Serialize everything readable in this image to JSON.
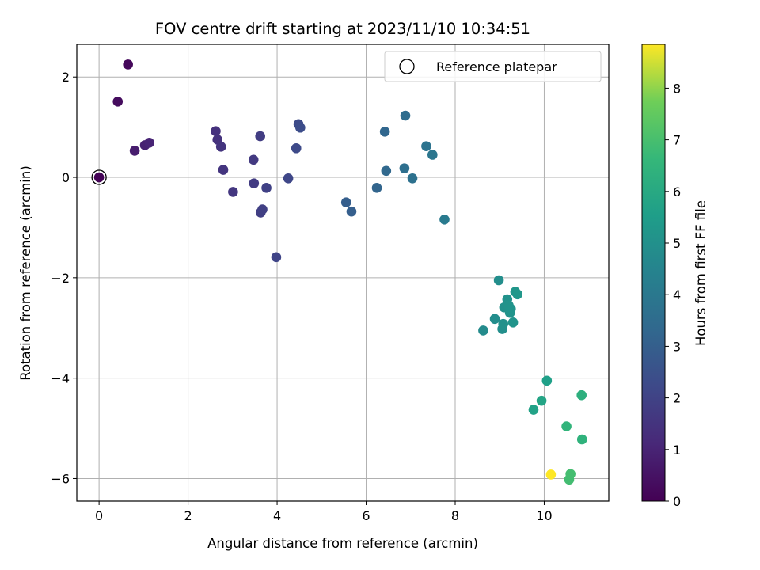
{
  "chart_data": {
    "type": "scatter",
    "title": "FOV centre drift starting at 2023/11/10 10:34:51",
    "xlabel": "Angular distance from reference (arcmin)",
    "ylabel": "Rotation from reference (arcmin)",
    "xlim": [
      -0.5,
      11.45
    ],
    "ylim": [
      -6.45,
      2.65
    ],
    "xticks": [
      0,
      2,
      4,
      6,
      8,
      10
    ],
    "yticks": [
      -6,
      -4,
      -2,
      0,
      2
    ],
    "grid": true,
    "legend": {
      "position": "top-right",
      "entries": [
        "Reference platepar"
      ]
    },
    "reference_point": {
      "x": 0,
      "y": 0
    },
    "colorbar": {
      "label": "Hours from first FF file",
      "range": [
        0,
        8.85
      ],
      "ticks": [
        0,
        1,
        2,
        3,
        4,
        5,
        6,
        7,
        8
      ],
      "colormap": "viridis"
    },
    "points": [
      {
        "x": 0.0,
        "y": 0.0,
        "hours": 0.05
      },
      {
        "x": 0.65,
        "y": 2.25,
        "hours": 0.2
      },
      {
        "x": 0.42,
        "y": 1.51,
        "hours": 0.3
      },
      {
        "x": 0.8,
        "y": 0.53,
        "hours": 0.8
      },
      {
        "x": 1.03,
        "y": 0.64,
        "hours": 0.9
      },
      {
        "x": 1.13,
        "y": 0.69,
        "hours": 1.0
      },
      {
        "x": 2.62,
        "y": 0.92,
        "hours": 1.4
      },
      {
        "x": 2.66,
        "y": 0.75,
        "hours": 1.45
      },
      {
        "x": 2.74,
        "y": 0.61,
        "hours": 1.5
      },
      {
        "x": 2.79,
        "y": 0.15,
        "hours": 1.55
      },
      {
        "x": 3.01,
        "y": -0.29,
        "hours": 1.6
      },
      {
        "x": 3.47,
        "y": 0.35,
        "hours": 1.7
      },
      {
        "x": 3.48,
        "y": -0.12,
        "hours": 1.75
      },
      {
        "x": 3.62,
        "y": 0.82,
        "hours": 1.8
      },
      {
        "x": 3.63,
        "y": -0.7,
        "hours": 1.85
      },
      {
        "x": 3.67,
        "y": -0.64,
        "hours": 1.9
      },
      {
        "x": 3.76,
        "y": -0.21,
        "hours": 1.95
      },
      {
        "x": 3.98,
        "y": -1.59,
        "hours": 2.05
      },
      {
        "x": 4.25,
        "y": -0.02,
        "hours": 2.15
      },
      {
        "x": 4.43,
        "y": 0.58,
        "hours": 2.25
      },
      {
        "x": 4.48,
        "y": 1.06,
        "hours": 2.3
      },
      {
        "x": 4.52,
        "y": 0.99,
        "hours": 2.35
      },
      {
        "x": 5.55,
        "y": -0.5,
        "hours": 2.95
      },
      {
        "x": 5.67,
        "y": -0.68,
        "hours": 3.0
      },
      {
        "x": 6.24,
        "y": -0.21,
        "hours": 3.2
      },
      {
        "x": 6.42,
        "y": 0.91,
        "hours": 3.3
      },
      {
        "x": 6.45,
        "y": 0.13,
        "hours": 3.35
      },
      {
        "x": 6.86,
        "y": 0.18,
        "hours": 3.6
      },
      {
        "x": 6.88,
        "y": 1.23,
        "hours": 3.55
      },
      {
        "x": 7.04,
        "y": -0.02,
        "hours": 3.7
      },
      {
        "x": 7.35,
        "y": 0.62,
        "hours": 3.8
      },
      {
        "x": 7.49,
        "y": 0.45,
        "hours": 3.9
      },
      {
        "x": 7.76,
        "y": -0.84,
        "hours": 4.1
      },
      {
        "x": 8.63,
        "y": -3.05,
        "hours": 4.8
      },
      {
        "x": 8.89,
        "y": -2.82,
        "hours": 4.85
      },
      {
        "x": 8.98,
        "y": -2.05,
        "hours": 4.9
      },
      {
        "x": 9.06,
        "y": -3.02,
        "hours": 4.95
      },
      {
        "x": 9.08,
        "y": -2.92,
        "hours": 5.0
      },
      {
        "x": 9.1,
        "y": -2.59,
        "hours": 5.0
      },
      {
        "x": 9.17,
        "y": -2.43,
        "hours": 5.05
      },
      {
        "x": 9.2,
        "y": -2.55,
        "hours": 5.1
      },
      {
        "x": 9.23,
        "y": -2.7,
        "hours": 5.1
      },
      {
        "x": 9.25,
        "y": -2.62,
        "hours": 5.15
      },
      {
        "x": 9.3,
        "y": -2.89,
        "hours": 5.15
      },
      {
        "x": 9.35,
        "y": -2.28,
        "hours": 5.2
      },
      {
        "x": 9.4,
        "y": -2.33,
        "hours": 5.25
      },
      {
        "x": 9.76,
        "y": -4.63,
        "hours": 5.7
      },
      {
        "x": 9.94,
        "y": -4.45,
        "hours": 5.8
      },
      {
        "x": 10.06,
        "y": -4.05,
        "hours": 5.6
      },
      {
        "x": 10.5,
        "y": -4.96,
        "hours": 6.5
      },
      {
        "x": 10.56,
        "y": -6.02,
        "hours": 6.9
      },
      {
        "x": 10.59,
        "y": -5.91,
        "hours": 6.95
      },
      {
        "x": 10.84,
        "y": -4.34,
        "hours": 6.3
      },
      {
        "x": 10.85,
        "y": -5.22,
        "hours": 6.4
      },
      {
        "x": 10.15,
        "y": -5.92,
        "hours": 8.85
      }
    ]
  }
}
